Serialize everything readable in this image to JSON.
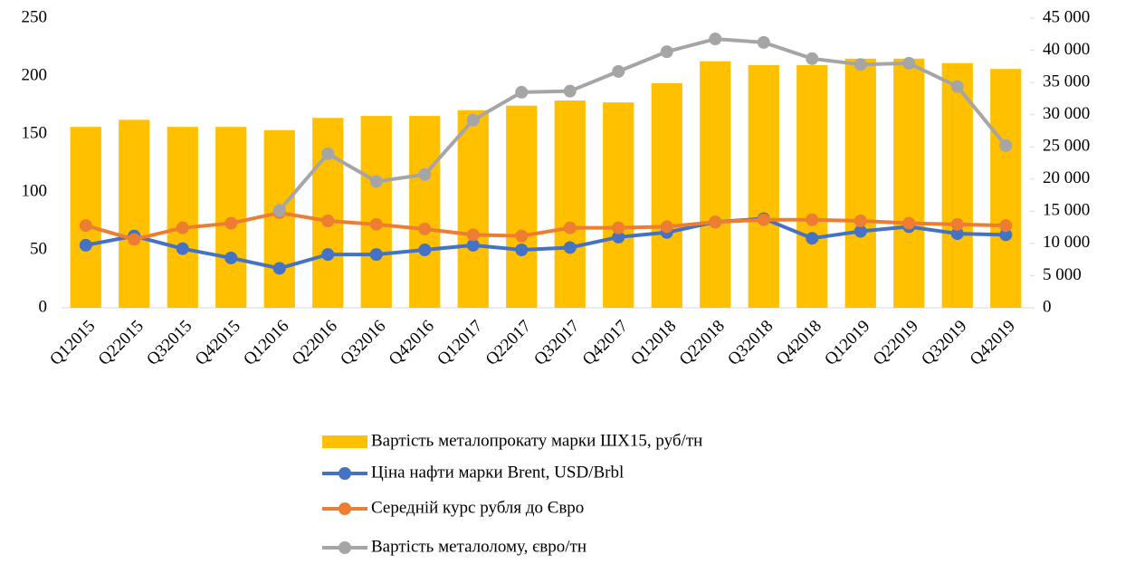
{
  "chart_data": {
    "type": "bar_line",
    "categories": [
      "Q12015",
      "Q22015",
      "Q32015",
      "Q42015",
      "Q12016",
      "Q22016",
      "Q32016",
      "Q42016",
      "Q12017",
      "Q22017",
      "Q32017",
      "Q42017",
      "Q12018",
      "Q22018",
      "Q32018",
      "Q42018",
      "Q12019",
      "Q22019",
      "Q32019",
      "Q42019"
    ],
    "series": [
      {
        "name": "Вартість металопрокату марки ШХ15, руб/тн",
        "kind": "bar",
        "axis": "y2",
        "color": "#ffc000",
        "values": [
          28100,
          29200,
          28100,
          28100,
          27600,
          29500,
          29800,
          29800,
          30700,
          31400,
          32200,
          31900,
          34900,
          38300,
          37700,
          37700,
          38700,
          38700,
          38000,
          37100
        ]
      },
      {
        "name": "Ціна нафти марки Brent, USD/Brbl",
        "kind": "line",
        "color": "#4472c4",
        "values": [
          54,
          62,
          51,
          43,
          34,
          46,
          46,
          50,
          54,
          50,
          52,
          61,
          65,
          74,
          77,
          60,
          66,
          70,
          64,
          63
        ]
      },
      {
        "name": "Середній курс рубля до Євро",
        "kind": "line",
        "color": "#ed7d31",
        "values": [
          71,
          59,
          69,
          73,
          82,
          75,
          72,
          68,
          63,
          62,
          69,
          69,
          70,
          74,
          76,
          76,
          75,
          73,
          72,
          71
        ]
      },
      {
        "name": "Вартість металолому, євро/тн",
        "kind": "line",
        "color": "#a5a5a5",
        "values": [
          null,
          null,
          null,
          null,
          84,
          133,
          109,
          115,
          162,
          186,
          187,
          204,
          221,
          232,
          229,
          215,
          210,
          211,
          191,
          140
        ]
      }
    ],
    "ylim": [
      0,
      250
    ],
    "yticks": [
      0,
      50,
      100,
      150,
      200,
      250
    ],
    "y2lim": [
      0,
      45000
    ],
    "y2ticks": [
      0,
      {
        "value": 5000,
        "label": "5 000"
      },
      {
        "value": 10000,
        "label": "10 000"
      },
      {
        "value": 15000,
        "label": "15 000"
      },
      {
        "value": 20000,
        "label": "20 000"
      },
      {
        "value": 25000,
        "label": "25 000"
      },
      {
        "value": 30000,
        "label": "30 000"
      },
      {
        "value": 35000,
        "label": "35 000"
      },
      {
        "value": 40000,
        "label": "40 000"
      },
      {
        "value": 45000,
        "label": "45 000"
      }
    ],
    "legend": "bottom"
  }
}
